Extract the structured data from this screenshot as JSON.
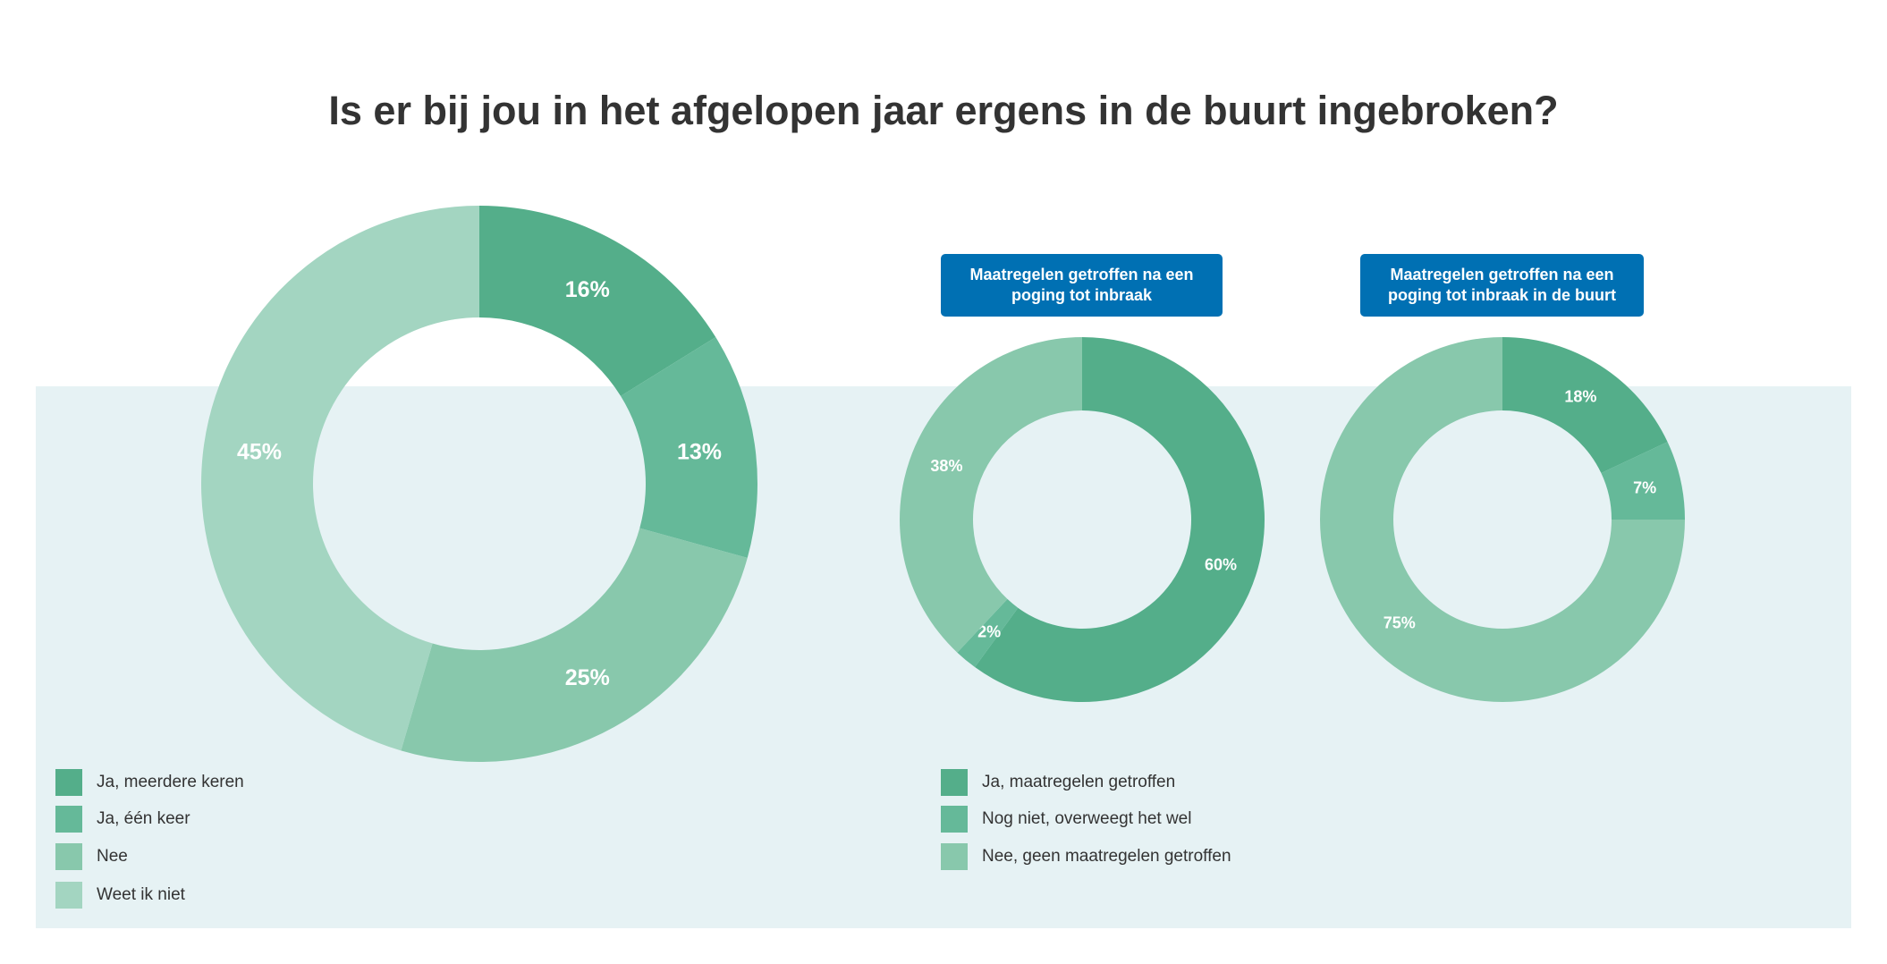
{
  "title": "Is er bij jou in het afgelopen jaar ergens in de buurt ingebroken?",
  "colors": {
    "c1": "#54ae8a",
    "c2": "#65b999",
    "c3": "#88c8ac",
    "c4": "#a3d5c1",
    "panel": "#e6f2f4",
    "header": "#0070b3"
  },
  "chart_data": [
    {
      "type": "pie",
      "title": "",
      "categories": [
        "Ja, meerdere keren",
        "Ja, één keer",
        "Nee",
        "Weet ik niet"
      ],
      "values": [
        16,
        13,
        25,
        45
      ],
      "labels": [
        "16%",
        "13%",
        "25%",
        "45%"
      ],
      "legend": "bottom-left"
    },
    {
      "type": "pie",
      "title": "Maatregelen getroffen na een poging tot inbraak",
      "categories": [
        "Ja, maatregelen getroffen",
        "Nog niet, overweegt het wel",
        "Nee, geen maatregelen getroffen"
      ],
      "values": [
        60,
        2,
        38
      ],
      "labels": [
        "60%",
        "2%",
        "38%"
      ],
      "legend": "bottom"
    },
    {
      "type": "pie",
      "title": "Maatregelen getroffen na een poging tot inbraak in de buurt",
      "categories": [
        "Ja, maatregelen getroffen",
        "Nog niet, overweegt het wel",
        "Nee, geen maatregelen getroffen"
      ],
      "values": [
        18,
        7,
        75
      ],
      "labels": [
        "18%",
        "7%",
        "75%"
      ],
      "legend": "bottom"
    }
  ],
  "legend_left": [
    "Ja, meerdere keren",
    "Ja, één keer",
    "Nee",
    "Weet ik niet"
  ],
  "legend_right": [
    "Ja, maatregelen getroffen",
    "Nog niet, overweegt het wel",
    "Nee, geen maatregelen getroffen"
  ]
}
